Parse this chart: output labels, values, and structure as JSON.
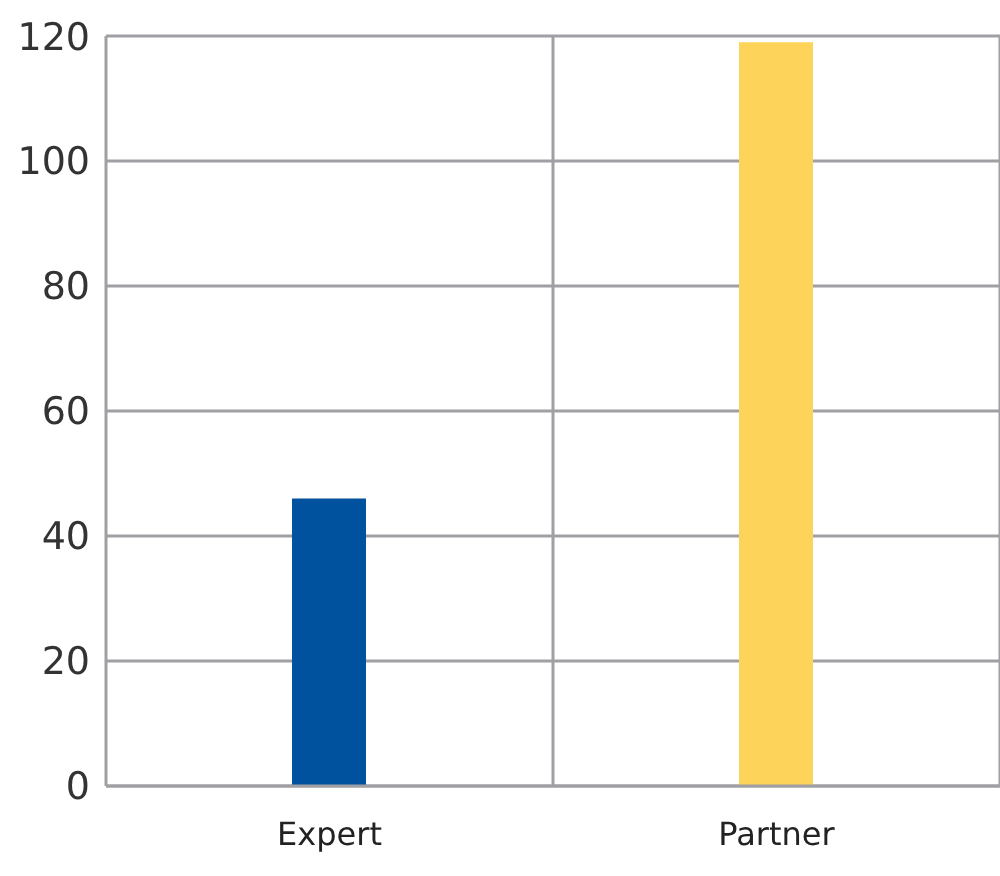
{
  "chart_data": {
    "type": "bar",
    "categories": [
      "Expert",
      "Partner"
    ],
    "values": [
      46,
      119
    ],
    "colors": [
      "#00529f",
      "#fed35a"
    ],
    "ylim": [
      0,
      120
    ],
    "yticks": [
      0,
      20,
      40,
      60,
      80,
      100,
      120
    ],
    "grid": true
  }
}
